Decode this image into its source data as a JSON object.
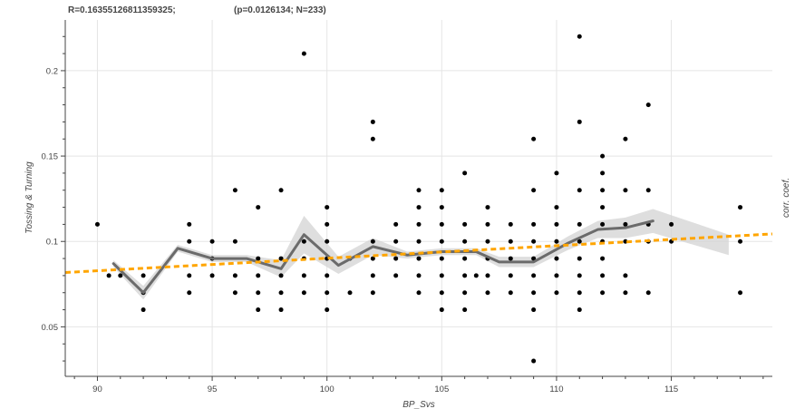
{
  "chart_data": {
    "type": "scatter",
    "title_left": "R=0.16355126811359325;",
    "title_right": "(p=0.0126134; N=233)",
    "xlabel": "BP_Svs",
    "ylabel": "Tossing & Turning",
    "right_label": "corr. coef.",
    "xlim": [
      88.6,
      119.4
    ],
    "ylim": [
      0.021,
      0.2297
    ],
    "xticks": [
      90,
      95,
      100,
      105,
      110,
      115
    ],
    "yticks": [
      0.05,
      0.1,
      0.15,
      0.2
    ],
    "grid": true,
    "legend": "none",
    "colors": {
      "points": "#000000",
      "smooth": "#6b6b6b",
      "band": "#d3d3d3",
      "trend": "#ffa500",
      "grid": "#e5e5e5"
    },
    "scatter": [
      [
        90,
        0.11
      ],
      [
        90.5,
        0.08
      ],
      [
        91,
        0.08
      ],
      [
        92,
        0.08
      ],
      [
        92,
        0.07
      ],
      [
        92,
        0.06
      ],
      [
        94,
        0.11
      ],
      [
        94,
        0.1
      ],
      [
        94,
        0.08
      ],
      [
        94,
        0.07
      ],
      [
        95,
        0.1
      ],
      [
        95,
        0.09
      ],
      [
        95,
        0.08
      ],
      [
        96,
        0.13
      ],
      [
        96,
        0.1
      ],
      [
        96,
        0.08
      ],
      [
        96,
        0.07
      ],
      [
        97,
        0.12
      ],
      [
        97,
        0.09
      ],
      [
        97,
        0.08
      ],
      [
        97,
        0.07
      ],
      [
        97,
        0.06
      ],
      [
        98,
        0.13
      ],
      [
        98,
        0.09
      ],
      [
        98,
        0.08
      ],
      [
        98,
        0.07
      ],
      [
        98,
        0.06
      ],
      [
        99,
        0.21
      ],
      [
        99,
        0.1
      ],
      [
        99,
        0.09
      ],
      [
        99,
        0.08
      ],
      [
        99,
        0.07
      ],
      [
        100,
        0.12
      ],
      [
        100,
        0.11
      ],
      [
        100,
        0.1
      ],
      [
        100,
        0.09
      ],
      [
        100,
        0.08
      ],
      [
        100,
        0.07
      ],
      [
        100,
        0.06
      ],
      [
        101,
        0.09
      ],
      [
        101,
        0.07
      ],
      [
        102,
        0.17
      ],
      [
        102,
        0.16
      ],
      [
        102,
        0.1
      ],
      [
        102,
        0.09
      ],
      [
        102,
        0.08
      ],
      [
        102,
        0.07
      ],
      [
        103,
        0.11
      ],
      [
        103,
        0.1
      ],
      [
        103,
        0.09
      ],
      [
        103,
        0.08
      ],
      [
        104,
        0.13
      ],
      [
        104,
        0.12
      ],
      [
        104,
        0.11
      ],
      [
        104,
        0.1
      ],
      [
        104,
        0.09
      ],
      [
        104,
        0.08
      ],
      [
        104,
        0.07
      ],
      [
        105,
        0.13
      ],
      [
        105,
        0.12
      ],
      [
        105,
        0.11
      ],
      [
        105,
        0.1
      ],
      [
        105,
        0.09
      ],
      [
        105,
        0.08
      ],
      [
        105,
        0.07
      ],
      [
        105,
        0.06
      ],
      [
        106,
        0.14
      ],
      [
        106,
        0.11
      ],
      [
        106,
        0.1
      ],
      [
        106,
        0.09
      ],
      [
        106,
        0.08
      ],
      [
        106,
        0.07
      ],
      [
        106,
        0.06
      ],
      [
        106.5,
        0.08
      ],
      [
        107,
        0.12
      ],
      [
        107,
        0.11
      ],
      [
        107,
        0.1
      ],
      [
        107,
        0.09
      ],
      [
        107,
        0.08
      ],
      [
        107,
        0.07
      ],
      [
        108,
        0.11
      ],
      [
        108,
        0.1
      ],
      [
        108,
        0.09
      ],
      [
        108,
        0.08
      ],
      [
        108,
        0.07
      ],
      [
        109,
        0.16
      ],
      [
        109,
        0.13
      ],
      [
        109,
        0.11
      ],
      [
        109,
        0.1
      ],
      [
        109,
        0.09
      ],
      [
        109,
        0.08
      ],
      [
        109,
        0.07
      ],
      [
        109,
        0.06
      ],
      [
        109,
        0.03
      ],
      [
        110,
        0.14
      ],
      [
        110,
        0.12
      ],
      [
        110,
        0.11
      ],
      [
        110,
        0.1
      ],
      [
        110,
        0.09
      ],
      [
        110,
        0.08
      ],
      [
        110,
        0.07
      ],
      [
        111,
        0.22
      ],
      [
        111,
        0.17
      ],
      [
        111,
        0.13
      ],
      [
        111,
        0.11
      ],
      [
        111,
        0.1
      ],
      [
        111,
        0.09
      ],
      [
        111,
        0.08
      ],
      [
        111,
        0.07
      ],
      [
        111,
        0.06
      ],
      [
        112,
        0.15
      ],
      [
        112,
        0.14
      ],
      [
        112,
        0.13
      ],
      [
        112,
        0.12
      ],
      [
        112,
        0.11
      ],
      [
        112,
        0.1
      ],
      [
        112,
        0.09
      ],
      [
        112,
        0.08
      ],
      [
        112,
        0.07
      ],
      [
        113,
        0.16
      ],
      [
        113,
        0.13
      ],
      [
        113,
        0.11
      ],
      [
        113,
        0.1
      ],
      [
        113,
        0.08
      ],
      [
        113,
        0.07
      ],
      [
        114,
        0.18
      ],
      [
        114,
        0.13
      ],
      [
        114,
        0.11
      ],
      [
        114,
        0.1
      ],
      [
        114,
        0.07
      ],
      [
        115,
        0.11
      ],
      [
        115,
        0.1
      ],
      [
        118,
        0.12
      ],
      [
        118,
        0.1
      ],
      [
        118,
        0.07
      ]
    ],
    "smooth_line": [
      [
        90.7,
        0.087
      ],
      [
        92,
        0.07
      ],
      [
        93.5,
        0.096
      ],
      [
        95,
        0.09
      ],
      [
        96.5,
        0.09
      ],
      [
        98,
        0.084
      ],
      [
        99,
        0.104
      ],
      [
        100.5,
        0.086
      ],
      [
        102,
        0.097
      ],
      [
        103.5,
        0.092
      ],
      [
        105,
        0.094
      ],
      [
        106.5,
        0.094
      ],
      [
        107.5,
        0.088
      ],
      [
        109,
        0.088
      ],
      [
        110.5,
        0.099
      ],
      [
        111.8,
        0.107
      ],
      [
        113,
        0.108
      ],
      [
        114.2,
        0.112
      ]
    ],
    "smooth_band_upper": [
      [
        90.7,
        0.089
      ],
      [
        92,
        0.074
      ],
      [
        93.5,
        0.098
      ],
      [
        95,
        0.092
      ],
      [
        96.5,
        0.092
      ],
      [
        98,
        0.089
      ],
      [
        99,
        0.115
      ],
      [
        100.5,
        0.091
      ],
      [
        102,
        0.102
      ],
      [
        103.5,
        0.094
      ],
      [
        105,
        0.096
      ],
      [
        106.5,
        0.096
      ],
      [
        107.5,
        0.091
      ],
      [
        109,
        0.091
      ],
      [
        110.5,
        0.103
      ],
      [
        111.8,
        0.112
      ],
      [
        113,
        0.114
      ],
      [
        114.2,
        0.119
      ],
      [
        117.5,
        0.104
      ]
    ],
    "smooth_band_lower": [
      [
        90.7,
        0.085
      ],
      [
        92,
        0.066
      ],
      [
        93.5,
        0.094
      ],
      [
        95,
        0.088
      ],
      [
        96.5,
        0.088
      ],
      [
        98,
        0.079
      ],
      [
        99,
        0.093
      ],
      [
        100.5,
        0.081
      ],
      [
        102,
        0.092
      ],
      [
        103.5,
        0.09
      ],
      [
        105,
        0.092
      ],
      [
        106.5,
        0.092
      ],
      [
        107.5,
        0.085
      ],
      [
        109,
        0.085
      ],
      [
        110.5,
        0.095
      ],
      [
        111.8,
        0.102
      ],
      [
        113,
        0.102
      ],
      [
        114.2,
        0.105
      ],
      [
        117.5,
        0.092
      ]
    ],
    "trend_line": [
      [
        88.6,
        0.0818
      ],
      [
        119.4,
        0.1044
      ]
    ]
  }
}
